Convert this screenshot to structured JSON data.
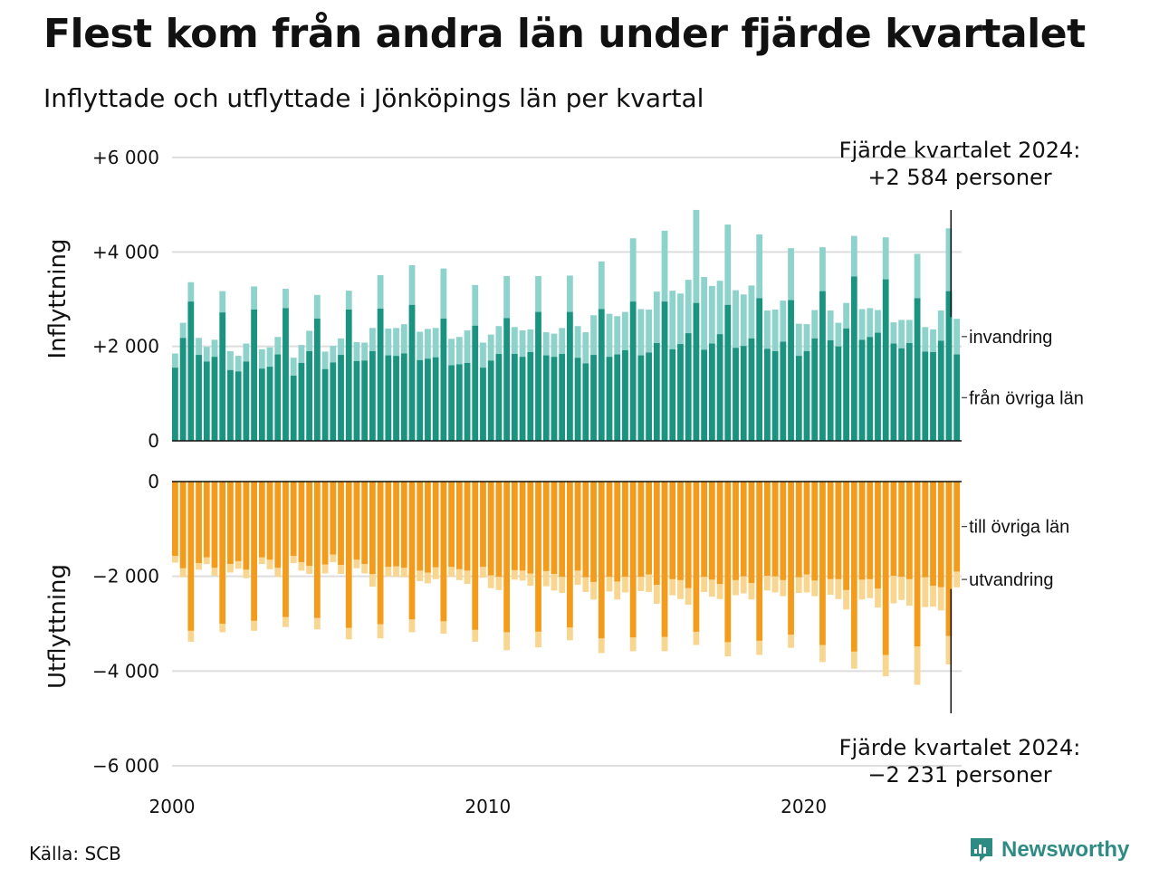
{
  "title": "Flest kom från andra län under fjärde kvartalet",
  "subtitle": "Inflyttade och utflyttade i Jönköpings län per kvartal",
  "source": "Källa: SCB",
  "brand": "Newsworthy",
  "colors": {
    "from_other_counties": "#1a9481",
    "immigration": "#8ed3cb",
    "to_other_counties": "#f39c1c",
    "emigration": "#f9d690",
    "grid": "#dddddd",
    "text": "#111111",
    "brand": "#2e8b83"
  },
  "icons": {
    "brand": "newsworthy-logo-icon"
  },
  "chart_data": [
    {
      "type": "bar",
      "stacked": true,
      "ylabel": "Inflyttning",
      "ylim": [
        0,
        6000
      ],
      "yticks": [
        {
          "value": 0,
          "label": "0"
        },
        {
          "value": 2000,
          "label": "+2 000"
        },
        {
          "value": 4000,
          "label": "+4 000"
        },
        {
          "value": 6000,
          "label": "+6 000"
        }
      ],
      "grid": true,
      "x_start": 2000,
      "x_period": "quarter",
      "xticks": [
        {
          "value": 2000,
          "label": "2000"
        },
        {
          "value": 2010,
          "label": "2010"
        },
        {
          "value": 2020,
          "label": "2020"
        }
      ],
      "series": [
        {
          "name": "från övriga län",
          "values": [
            1550,
            2180,
            2950,
            1820,
            1680,
            1780,
            2720,
            1500,
            1470,
            1680,
            2780,
            1530,
            1570,
            1830,
            2810,
            1380,
            1650,
            1900,
            2590,
            1520,
            1660,
            1820,
            2780,
            1690,
            1700,
            1900,
            2800,
            1810,
            1800,
            1850,
            2880,
            1710,
            1740,
            1770,
            2590,
            1600,
            1620,
            1650,
            2440,
            1550,
            1700,
            1840,
            2600,
            1840,
            1780,
            1880,
            2730,
            1810,
            1780,
            1840,
            2730,
            1760,
            1640,
            1820,
            2790,
            1780,
            1830,
            1920,
            2950,
            1810,
            1870,
            2070,
            2950,
            1940,
            2050,
            2280,
            2920,
            1930,
            2060,
            2260,
            2880,
            1970,
            2010,
            2170,
            3020,
            1950,
            1900,
            2100,
            2980,
            1800,
            1900,
            2170,
            3170,
            2130,
            2000,
            2380,
            3480,
            2140,
            2200,
            2290,
            3420,
            2060,
            1960,
            2070,
            3020,
            1890,
            1880,
            2120,
            3170,
            1830
          ]
        },
        {
          "name": "invandring",
          "values": [
            300,
            320,
            410,
            360,
            310,
            360,
            450,
            400,
            330,
            380,
            490,
            410,
            410,
            370,
            410,
            380,
            380,
            430,
            500,
            370,
            350,
            350,
            400,
            400,
            380,
            490,
            710,
            570,
            590,
            620,
            840,
            600,
            630,
            620,
            1060,
            560,
            580,
            690,
            860,
            530,
            550,
            590,
            890,
            570,
            560,
            480,
            760,
            490,
            490,
            550,
            770,
            670,
            660,
            840,
            1010,
            910,
            810,
            810,
            1340,
            980,
            910,
            1090,
            1500,
            1240,
            1070,
            1130,
            1970,
            1540,
            1220,
            1130,
            1700,
            1220,
            1090,
            1120,
            1350,
            810,
            880,
            870,
            1100,
            680,
            570,
            600,
            930,
            630,
            500,
            540,
            860,
            650,
            610,
            480,
            890,
            450,
            600,
            490,
            940,
            520,
            480,
            640,
            1330,
            750
          ]
        },
        {
          "name": "total",
          "values": [
            1850,
            2500,
            3360,
            2180,
            1990,
            2140,
            3170,
            1900,
            1800,
            2060,
            3270,
            1940,
            1980,
            2200,
            3220,
            1760,
            2030,
            2330,
            3090,
            1890,
            2010,
            2170,
            3180,
            2090,
            2080,
            2390,
            3510,
            2380,
            2390,
            2470,
            3720,
            2310,
            2370,
            2390,
            3650,
            2160,
            2200,
            2340,
            3300,
            2080,
            2250,
            2430,
            3490,
            2410,
            2340,
            2360,
            3490,
            2300,
            2270,
            2390,
            3500,
            2430,
            2300,
            2660,
            3800,
            2690,
            2640,
            2730,
            4290,
            2790,
            2780,
            3160,
            4450,
            3180,
            3120,
            3410,
            4890,
            3470,
            3280,
            3390,
            4580,
            3190,
            3100,
            3290,
            4370,
            2760,
            2780,
            2970,
            4080,
            2480,
            2470,
            2770,
            4100,
            2760,
            2500,
            2920,
            4340,
            2790,
            2810,
            2770,
            4310,
            2510,
            2560,
            2560,
            3960,
            2410,
            2360,
            2760,
            4500,
            2584
          ]
        }
      ],
      "annotation": {
        "text": "Fjärde kvartalet 2024:",
        "value": "+2 584 personer"
      },
      "legend_labels": [
        {
          "text": "invandring"
        },
        {
          "text": "från övriga län"
        }
      ]
    },
    {
      "type": "bar",
      "stacked": true,
      "ylabel": "Utflyttning",
      "ylim": [
        -6000,
        0
      ],
      "yticks": [
        {
          "value": 0,
          "label": "0"
        },
        {
          "value": -2000,
          "label": "−2 000"
        },
        {
          "value": -4000,
          "label": "−4 000"
        },
        {
          "value": -6000,
          "label": "−6 000"
        }
      ],
      "grid": true,
      "series": [
        {
          "name": "till övriga län",
          "values": [
            -1570,
            -1830,
            -3150,
            -1720,
            -1600,
            -1820,
            -3000,
            -1740,
            -1680,
            -1860,
            -2940,
            -1600,
            -1650,
            -1820,
            -2860,
            -1570,
            -1700,
            -1780,
            -2880,
            -1750,
            -1540,
            -1760,
            -3090,
            -1650,
            -1740,
            -1950,
            -3010,
            -1800,
            -1790,
            -1820,
            -2910,
            -1880,
            -1920,
            -1810,
            -2950,
            -1800,
            -1850,
            -1880,
            -3130,
            -1800,
            -1980,
            -2010,
            -3180,
            -1870,
            -1880,
            -1940,
            -3170,
            -1890,
            -1950,
            -2010,
            -3080,
            -1880,
            -2020,
            -2120,
            -3310,
            -2010,
            -2110,
            -2010,
            -3290,
            -2010,
            -1960,
            -2180,
            -3280,
            -2060,
            -2080,
            -2250,
            -3170,
            -2010,
            -2070,
            -2160,
            -3390,
            -2080,
            -2000,
            -2140,
            -3360,
            -1990,
            -2000,
            -2080,
            -3230,
            -2020,
            -1960,
            -2090,
            -3450,
            -2060,
            -2060,
            -2290,
            -3590,
            -2070,
            -2060,
            -2260,
            -3660,
            -1990,
            -2010,
            -2060,
            -3480,
            -2020,
            -2200,
            -2230,
            -3260,
            -1900
          ]
        },
        {
          "name": "utvandring",
          "values": [
            -140,
            -190,
            -230,
            -140,
            -140,
            -170,
            -180,
            -180,
            -160,
            -180,
            -210,
            -140,
            -200,
            -190,
            -210,
            -150,
            -180,
            -170,
            -240,
            -190,
            -160,
            -190,
            -240,
            -180,
            -200,
            -270,
            -300,
            -200,
            -220,
            -200,
            -270,
            -220,
            -230,
            -250,
            -260,
            -210,
            -230,
            -280,
            -250,
            -230,
            -270,
            -280,
            -380,
            -200,
            -210,
            -260,
            -330,
            -320,
            -350,
            -340,
            -270,
            -300,
            -310,
            -370,
            -310,
            -310,
            -380,
            -330,
            -290,
            -300,
            -370,
            -400,
            -300,
            -340,
            -400,
            -350,
            -280,
            -320,
            -360,
            -320,
            -300,
            -320,
            -360,
            -350,
            -300,
            -310,
            -340,
            -340,
            -280,
            -330,
            -380,
            -330,
            -360,
            -330,
            -420,
            -410,
            -360,
            -420,
            -400,
            -400,
            -450,
            -580,
            -490,
            -560,
            -810,
            -630,
            -440,
            -490,
            -600,
            -331
          ]
        },
        {
          "name": "total",
          "values": [
            -1710,
            -2020,
            -3380,
            -1860,
            -1740,
            -1990,
            -3180,
            -1920,
            -1840,
            -2040,
            -3150,
            -1740,
            -1850,
            -2010,
            -3070,
            -1720,
            -1880,
            -1950,
            -3120,
            -1940,
            -1700,
            -1950,
            -3330,
            -1830,
            -1940,
            -2220,
            -3310,
            -2000,
            -2010,
            -2020,
            -3180,
            -2100,
            -2150,
            -2060,
            -3210,
            -2010,
            -2080,
            -2160,
            -3380,
            -2030,
            -2250,
            -2290,
            -3560,
            -2070,
            -2090,
            -2200,
            -3500,
            -2210,
            -2300,
            -2350,
            -3350,
            -2180,
            -2330,
            -2490,
            -3620,
            -2320,
            -2490,
            -2340,
            -3580,
            -2310,
            -2330,
            -2580,
            -3580,
            -2400,
            -2480,
            -2600,
            -3450,
            -2330,
            -2430,
            -2480,
            -3690,
            -2400,
            -2360,
            -2490,
            -3660,
            -2300,
            -2340,
            -2420,
            -3510,
            -2350,
            -2340,
            -2420,
            -3810,
            -2390,
            -2480,
            -2700,
            -3950,
            -2490,
            -2460,
            -2660,
            -4110,
            -2570,
            -2500,
            -2620,
            -4290,
            -2650,
            -2640,
            -2720,
            -3860,
            -2231
          ]
        }
      ],
      "annotation": {
        "text": "Fjärde kvartalet 2024:",
        "value": "−2 231 personer"
      },
      "legend_labels": [
        {
          "text": "till övriga län"
        },
        {
          "text": "utvandring"
        }
      ]
    }
  ]
}
